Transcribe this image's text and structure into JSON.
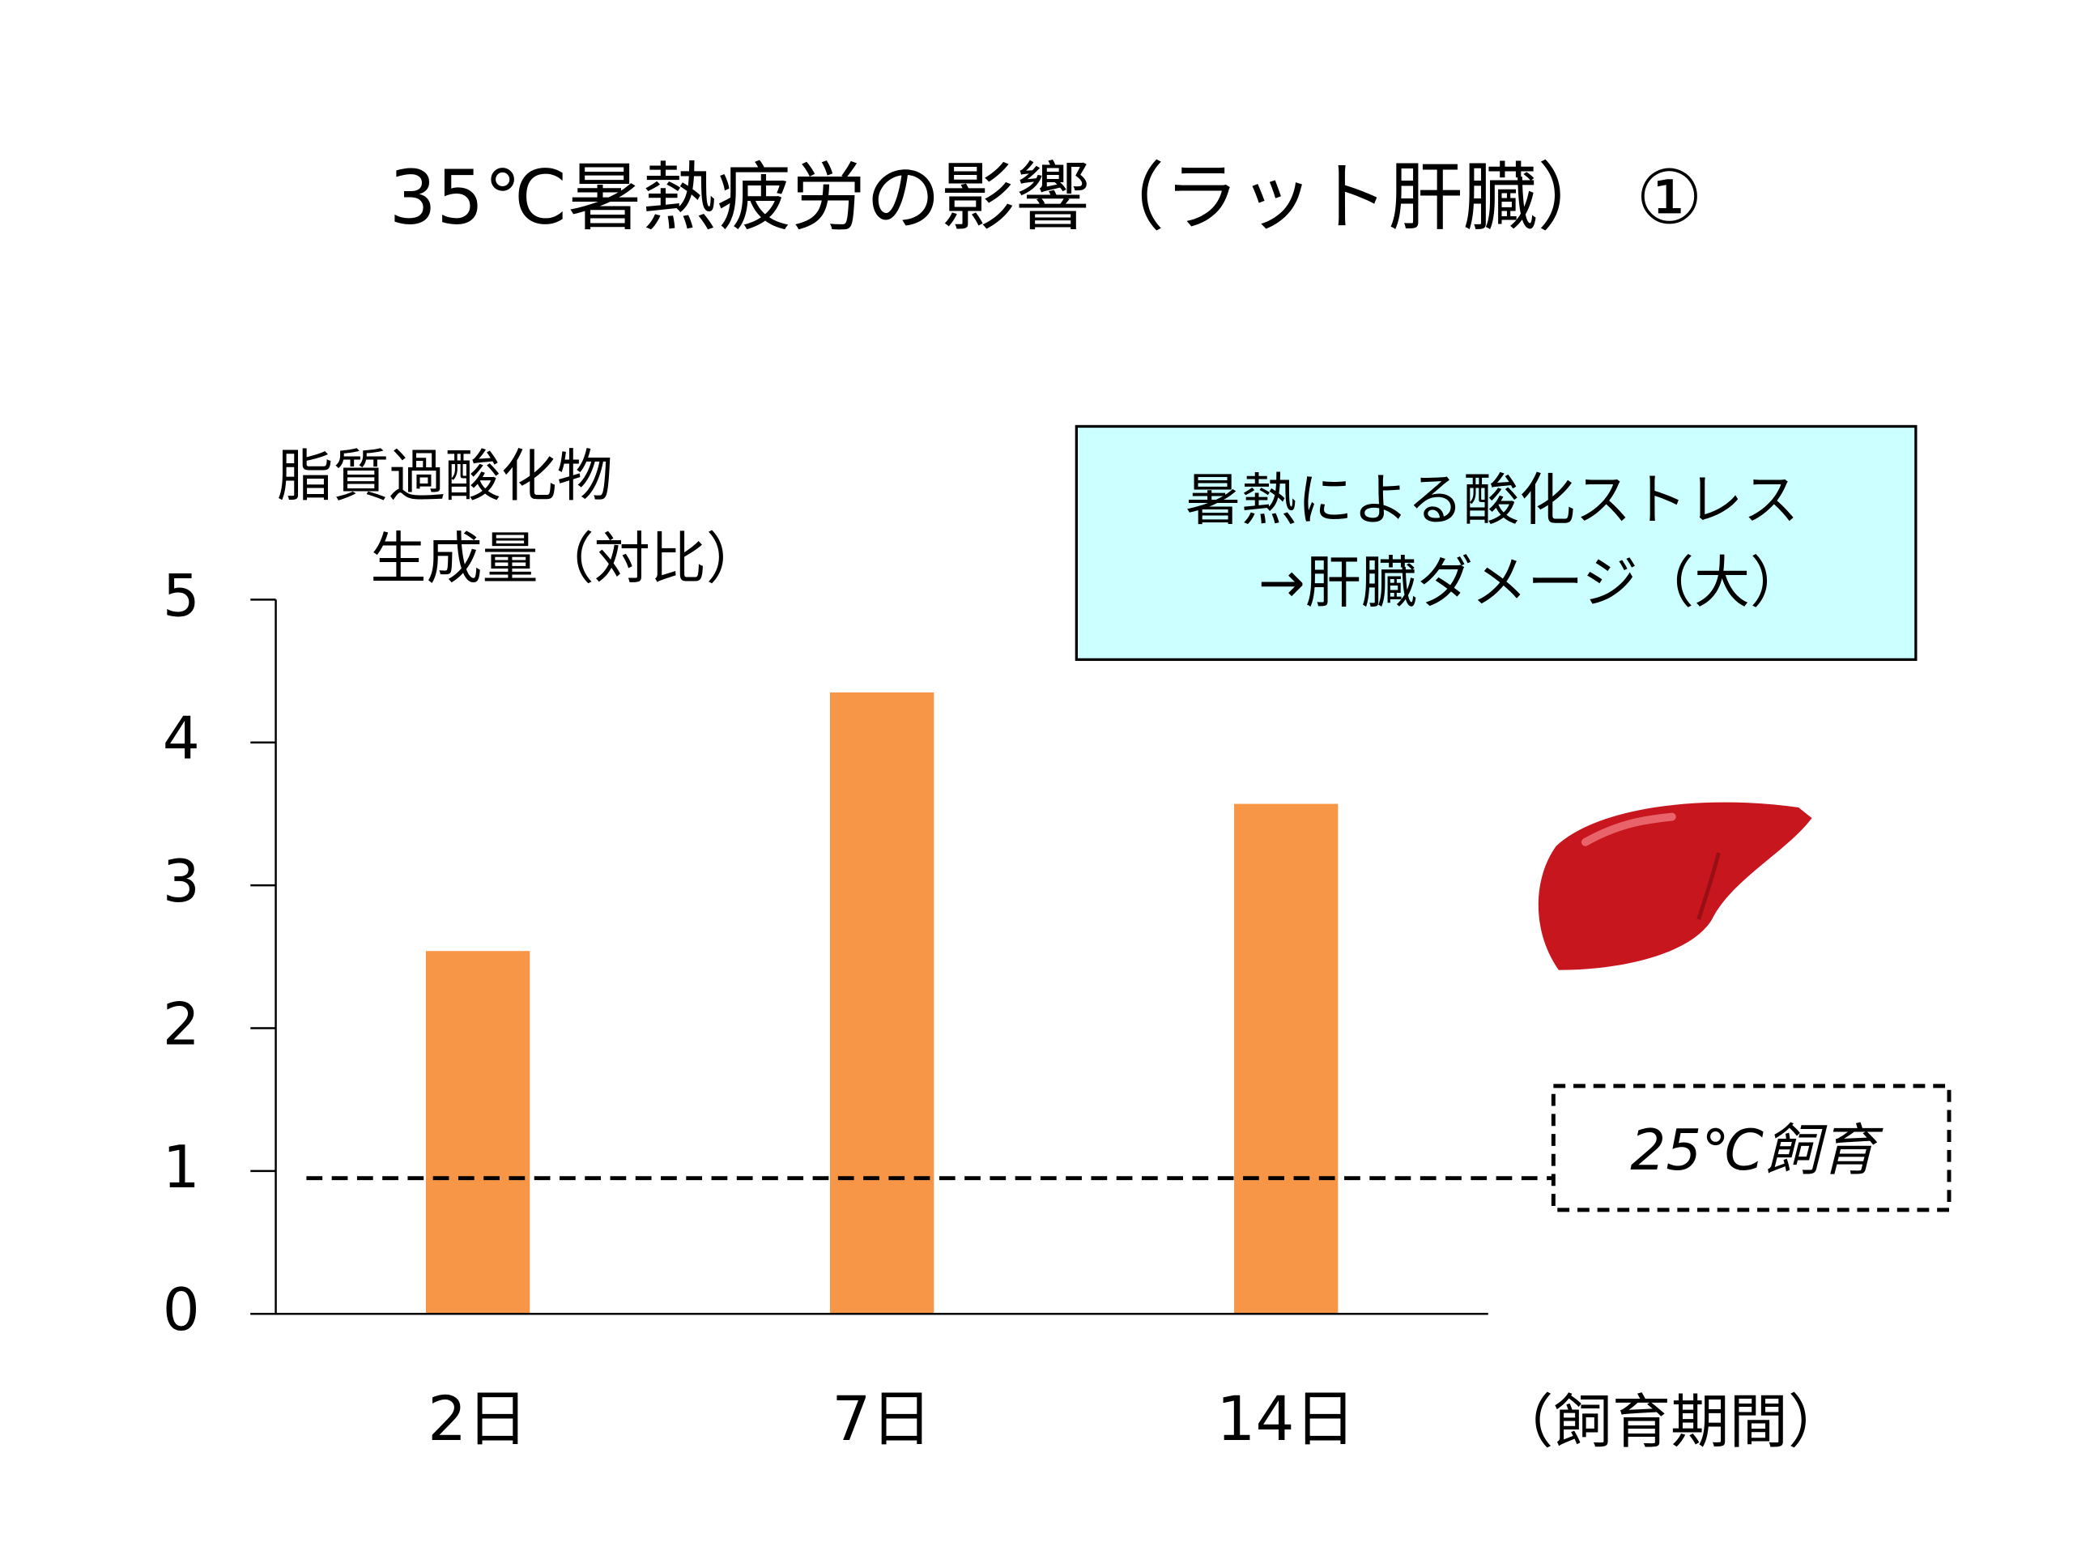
{
  "chart_data": {
    "type": "bar",
    "title": "35℃暑熱疲労の影響（ラット肝臓） ①",
    "y_label": [
      "脂質過酸化物",
      "生成量（対比）"
    ],
    "x_label": "（飼育期間）",
    "categories": [
      "2日",
      "7日",
      "14日"
    ],
    "values": [
      2.54,
      4.35,
      3.57
    ],
    "color": "#f79646",
    "ylim": [
      0,
      5
    ],
    "yticks": [
      0,
      1,
      2,
      3,
      4,
      5
    ],
    "reference_line": {
      "value": 0.95,
      "label": "25℃飼育"
    },
    "annotation": [
      "暑熱による酸化ストレス",
      "→肝臓ダメージ（大）"
    ]
  }
}
